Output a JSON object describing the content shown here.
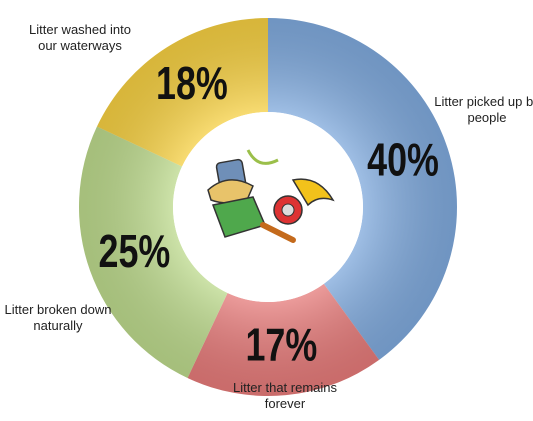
{
  "chart_data": {
    "type": "donut",
    "categories": [
      "Litter picked up by people",
      "Litter that remains forever",
      "Litter broken down naturally",
      "Litter washed into our waterways"
    ],
    "values": [
      40,
      17,
      25,
      18
    ],
    "value_labels": [
      "40%",
      "17%",
      "25%",
      "18%"
    ],
    "colors": [
      "#7fa9dc",
      "#e57a79",
      "#bcd98c",
      "#f5cf42"
    ]
  }
}
